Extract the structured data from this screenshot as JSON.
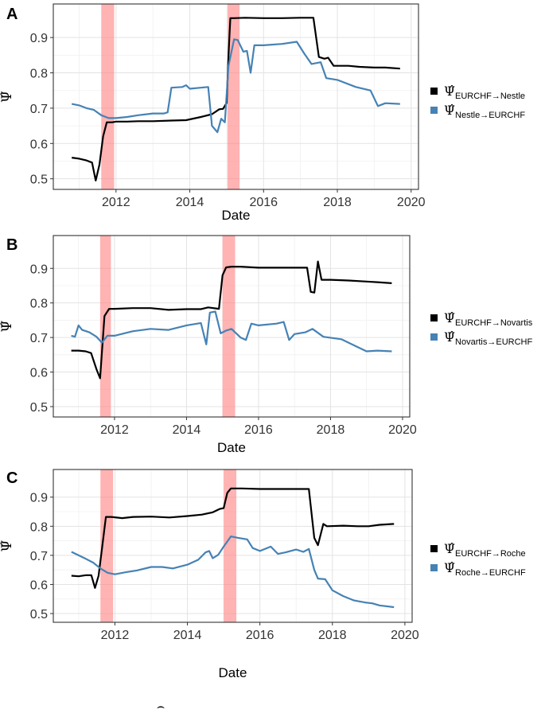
{
  "chart_data": [
    {
      "panel": "A",
      "type": "line",
      "xlabel": "Date",
      "ylabel": "Ψ̂",
      "xlim": [
        2010.3,
        2020.2
      ],
      "ylim": [
        0.47,
        0.995
      ],
      "x_ticks": [
        2012,
        2014,
        2016,
        2018,
        2020
      ],
      "y_ticks": [
        0.5,
        0.6,
        0.7,
        0.8,
        0.9
      ],
      "shaded_periods": [
        [
          2011.6,
          2011.95
        ],
        [
          2015.02,
          2015.35
        ]
      ],
      "grid": true,
      "legend_position": "right",
      "series": [
        {
          "name": "EURCHF→Nestle",
          "color": "#000000",
          "x": [
            2010.8,
            2011.0,
            2011.2,
            2011.35,
            2011.45,
            2011.55,
            2011.65,
            2011.75,
            2011.9,
            2012.0,
            2012.3,
            2012.6,
            2013.0,
            2013.5,
            2013.9,
            2014.3,
            2014.6,
            2014.8,
            2014.9,
            2015.0,
            2015.05,
            2015.1,
            2015.2,
            2015.5,
            2016.0,
            2016.5,
            2017.0,
            2017.35,
            2017.5,
            2017.65,
            2017.75,
            2017.9,
            2018.3,
            2018.6,
            2019.0,
            2019.3,
            2019.7
          ],
          "values": [
            0.56,
            0.557,
            0.552,
            0.546,
            0.495,
            0.54,
            0.62,
            0.66,
            0.66,
            0.662,
            0.662,
            0.663,
            0.663,
            0.665,
            0.666,
            0.675,
            0.683,
            0.697,
            0.698,
            0.715,
            0.85,
            0.955,
            0.955,
            0.956,
            0.955,
            0.955,
            0.956,
            0.956,
            0.845,
            0.84,
            0.843,
            0.82,
            0.82,
            0.817,
            0.815,
            0.815,
            0.812
          ]
        },
        {
          "name": "Nestle→EURCHF",
          "color": "#4682B4",
          "x": [
            2010.8,
            2011.0,
            2011.2,
            2011.4,
            2011.6,
            2011.8,
            2012.0,
            2012.3,
            2012.6,
            2013.0,
            2013.3,
            2013.4,
            2013.5,
            2013.8,
            2013.9,
            2014.0,
            2014.5,
            2014.6,
            2014.75,
            2014.85,
            2014.95,
            2015.05,
            2015.2,
            2015.3,
            2015.45,
            2015.55,
            2015.65,
            2015.75,
            2016.0,
            2016.5,
            2016.9,
            2017.1,
            2017.3,
            2017.55,
            2017.7,
            2018.0,
            2018.5,
            2018.9,
            2019.1,
            2019.3,
            2019.7
          ],
          "values": [
            0.712,
            0.708,
            0.7,
            0.695,
            0.68,
            0.672,
            0.672,
            0.675,
            0.68,
            0.685,
            0.685,
            0.688,
            0.758,
            0.76,
            0.765,
            0.755,
            0.76,
            0.65,
            0.632,
            0.67,
            0.66,
            0.82,
            0.895,
            0.893,
            0.86,
            0.862,
            0.8,
            0.878,
            0.878,
            0.882,
            0.888,
            0.855,
            0.825,
            0.83,
            0.785,
            0.78,
            0.76,
            0.75,
            0.706,
            0.714,
            0.712
          ]
        }
      ]
    },
    {
      "panel": "B",
      "type": "line",
      "xlabel": "Date",
      "ylabel": "Ψ̂",
      "xlim": [
        2010.3,
        2020.2
      ],
      "ylim": [
        0.47,
        0.995
      ],
      "x_ticks": [
        2012,
        2014,
        2016,
        2018,
        2020
      ],
      "y_ticks": [
        0.5,
        0.6,
        0.7,
        0.8,
        0.9
      ],
      "shaded_periods": [
        [
          2011.6,
          2011.9
        ],
        [
          2015.0,
          2015.35
        ]
      ],
      "grid": true,
      "legend_position": "right",
      "series": [
        {
          "name": "EURCHF→Novartis",
          "color": "#000000",
          "x": [
            2010.8,
            2011.0,
            2011.2,
            2011.35,
            2011.5,
            2011.6,
            2011.72,
            2011.85,
            2012.0,
            2012.5,
            2013.0,
            2013.5,
            2014.0,
            2014.4,
            2014.6,
            2014.9,
            2015.0,
            2015.1,
            2015.25,
            2015.5,
            2016.0,
            2016.5,
            2017.0,
            2017.35,
            2017.45,
            2017.55,
            2017.65,
            2017.75,
            2018.0,
            2018.5,
            2019.0,
            2019.3,
            2019.7
          ],
          "values": [
            0.662,
            0.662,
            0.66,
            0.655,
            0.608,
            0.582,
            0.762,
            0.783,
            0.783,
            0.785,
            0.785,
            0.78,
            0.782,
            0.782,
            0.787,
            0.783,
            0.88,
            0.903,
            0.905,
            0.905,
            0.902,
            0.902,
            0.902,
            0.902,
            0.832,
            0.83,
            0.92,
            0.867,
            0.867,
            0.865,
            0.862,
            0.86,
            0.857
          ]
        },
        {
          "name": "Novartis→EURCHF",
          "color": "#4682B4",
          "x": [
            2010.8,
            2010.9,
            2011.0,
            2011.1,
            2011.3,
            2011.5,
            2011.65,
            2011.8,
            2012.0,
            2012.5,
            2013.0,
            2013.5,
            2014.0,
            2014.4,
            2014.55,
            2014.65,
            2014.8,
            2014.95,
            2015.1,
            2015.25,
            2015.5,
            2015.65,
            2015.8,
            2016.0,
            2016.5,
            2016.7,
            2016.85,
            2017.0,
            2017.3,
            2017.5,
            2017.8,
            2018.3,
            2018.7,
            2019.0,
            2019.3,
            2019.7
          ],
          "values": [
            0.705,
            0.702,
            0.735,
            0.722,
            0.715,
            0.702,
            0.685,
            0.705,
            0.705,
            0.718,
            0.725,
            0.722,
            0.735,
            0.742,
            0.68,
            0.772,
            0.775,
            0.712,
            0.72,
            0.725,
            0.7,
            0.693,
            0.74,
            0.735,
            0.74,
            0.745,
            0.693,
            0.71,
            0.715,
            0.725,
            0.702,
            0.695,
            0.675,
            0.66,
            0.662,
            0.66
          ]
        }
      ]
    },
    {
      "panel": "C",
      "type": "line",
      "xlabel": "Date",
      "ylabel": "Ψ̂",
      "xlim": [
        2010.3,
        2020.2
      ],
      "ylim": [
        0.47,
        0.995
      ],
      "x_ticks": [
        2012,
        2014,
        2016,
        2018,
        2020
      ],
      "y_ticks": [
        0.5,
        0.6,
        0.7,
        0.8,
        0.9
      ],
      "shaded_periods": [
        [
          2011.6,
          2011.95
        ],
        [
          2015.0,
          2015.35
        ]
      ],
      "grid": true,
      "legend_position": "right",
      "series": [
        {
          "name": "EURCHF→Roche",
          "color": "#000000",
          "x": [
            2010.8,
            2011.0,
            2011.2,
            2011.35,
            2011.45,
            2011.55,
            2011.65,
            2011.75,
            2011.9,
            2012.2,
            2012.5,
            2013.0,
            2013.5,
            2014.0,
            2014.4,
            2014.7,
            2014.9,
            2015.0,
            2015.1,
            2015.2,
            2015.5,
            2016.0,
            2016.5,
            2017.0,
            2017.35,
            2017.5,
            2017.6,
            2017.75,
            2017.85,
            2018.3,
            2018.7,
            2019.0,
            2019.3,
            2019.7
          ],
          "values": [
            0.63,
            0.628,
            0.632,
            0.632,
            0.588,
            0.63,
            0.73,
            0.832,
            0.832,
            0.828,
            0.832,
            0.833,
            0.83,
            0.835,
            0.84,
            0.848,
            0.86,
            0.862,
            0.915,
            0.93,
            0.93,
            0.928,
            0.928,
            0.928,
            0.928,
            0.76,
            0.735,
            0.808,
            0.8,
            0.802,
            0.8,
            0.8,
            0.805,
            0.808
          ]
        },
        {
          "name": "Roche→EURCHF",
          "color": "#4682B4",
          "x": [
            2010.8,
            2011.0,
            2011.2,
            2011.4,
            2011.6,
            2011.8,
            2012.0,
            2012.3,
            2012.6,
            2013.0,
            2013.3,
            2013.6,
            2014.0,
            2014.3,
            2014.5,
            2014.6,
            2014.7,
            2014.85,
            2015.0,
            2015.2,
            2015.4,
            2015.65,
            2015.8,
            2016.0,
            2016.3,
            2016.5,
            2016.7,
            2017.0,
            2017.2,
            2017.35,
            2017.5,
            2017.6,
            2017.8,
            2018.0,
            2018.3,
            2018.6,
            2018.9,
            2019.1,
            2019.3,
            2019.7
          ],
          "values": [
            0.712,
            0.7,
            0.688,
            0.675,
            0.655,
            0.64,
            0.635,
            0.642,
            0.648,
            0.66,
            0.66,
            0.655,
            0.668,
            0.685,
            0.71,
            0.715,
            0.69,
            0.702,
            0.73,
            0.765,
            0.76,
            0.755,
            0.725,
            0.715,
            0.73,
            0.705,
            0.71,
            0.72,
            0.712,
            0.722,
            0.65,
            0.62,
            0.618,
            0.58,
            0.56,
            0.545,
            0.538,
            0.535,
            0.528,
            0.522
          ]
        }
      ]
    }
  ]
}
